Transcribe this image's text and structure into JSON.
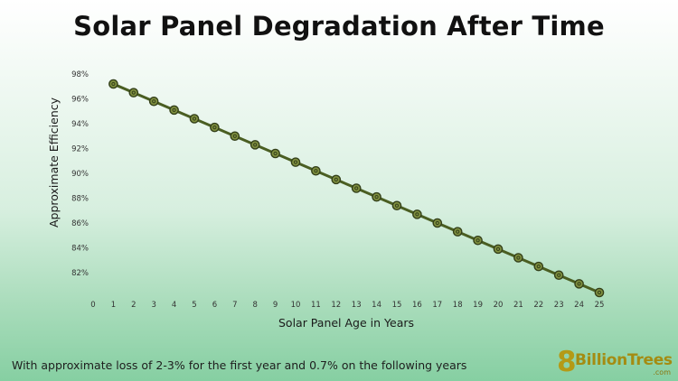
{
  "chart_data": {
    "type": "line",
    "title": "Solar Panel Degradation After Time",
    "xlabel": "Solar Panel Age in Years",
    "ylabel": "Approximate Efficiency",
    "x_ticks": [
      0,
      1,
      2,
      3,
      4,
      5,
      6,
      7,
      8,
      9,
      10,
      11,
      12,
      13,
      14,
      15,
      16,
      17,
      18,
      19,
      20,
      21,
      22,
      23,
      24,
      25
    ],
    "y_ticks": [
      "98%",
      "96%",
      "94%",
      "92%",
      "90%",
      "88%",
      "86%",
      "84%",
      "82%"
    ],
    "ylim": [
      81,
      99
    ],
    "grid": false,
    "legend": "none",
    "series": [
      {
        "x": [
          1,
          2,
          3,
          4,
          5,
          6,
          7,
          8,
          9,
          10,
          11,
          12,
          13,
          14,
          15,
          16,
          17,
          18,
          19,
          20,
          21,
          22,
          23,
          24,
          25
        ],
        "values": [
          97.2,
          96.5,
          95.8,
          95.1,
          94.4,
          93.7,
          93.0,
          92.3,
          91.6,
          90.9,
          90.2,
          89.5,
          88.8,
          88.1,
          87.4,
          86.7,
          86.0,
          85.3,
          84.6,
          83.9,
          83.2,
          82.5,
          81.8,
          81.1,
          80.4
        ]
      }
    ],
    "colors": {
      "line": "#4a5e22",
      "marker_fill": "#7f8f3f",
      "marker_edge": "#34401a"
    }
  },
  "footnote": "With approximate loss of 2-3% for the first year and 0.7% on the following years",
  "logo": {
    "digit": "8",
    "name": "BillionTrees",
    "suffix": ".com"
  }
}
